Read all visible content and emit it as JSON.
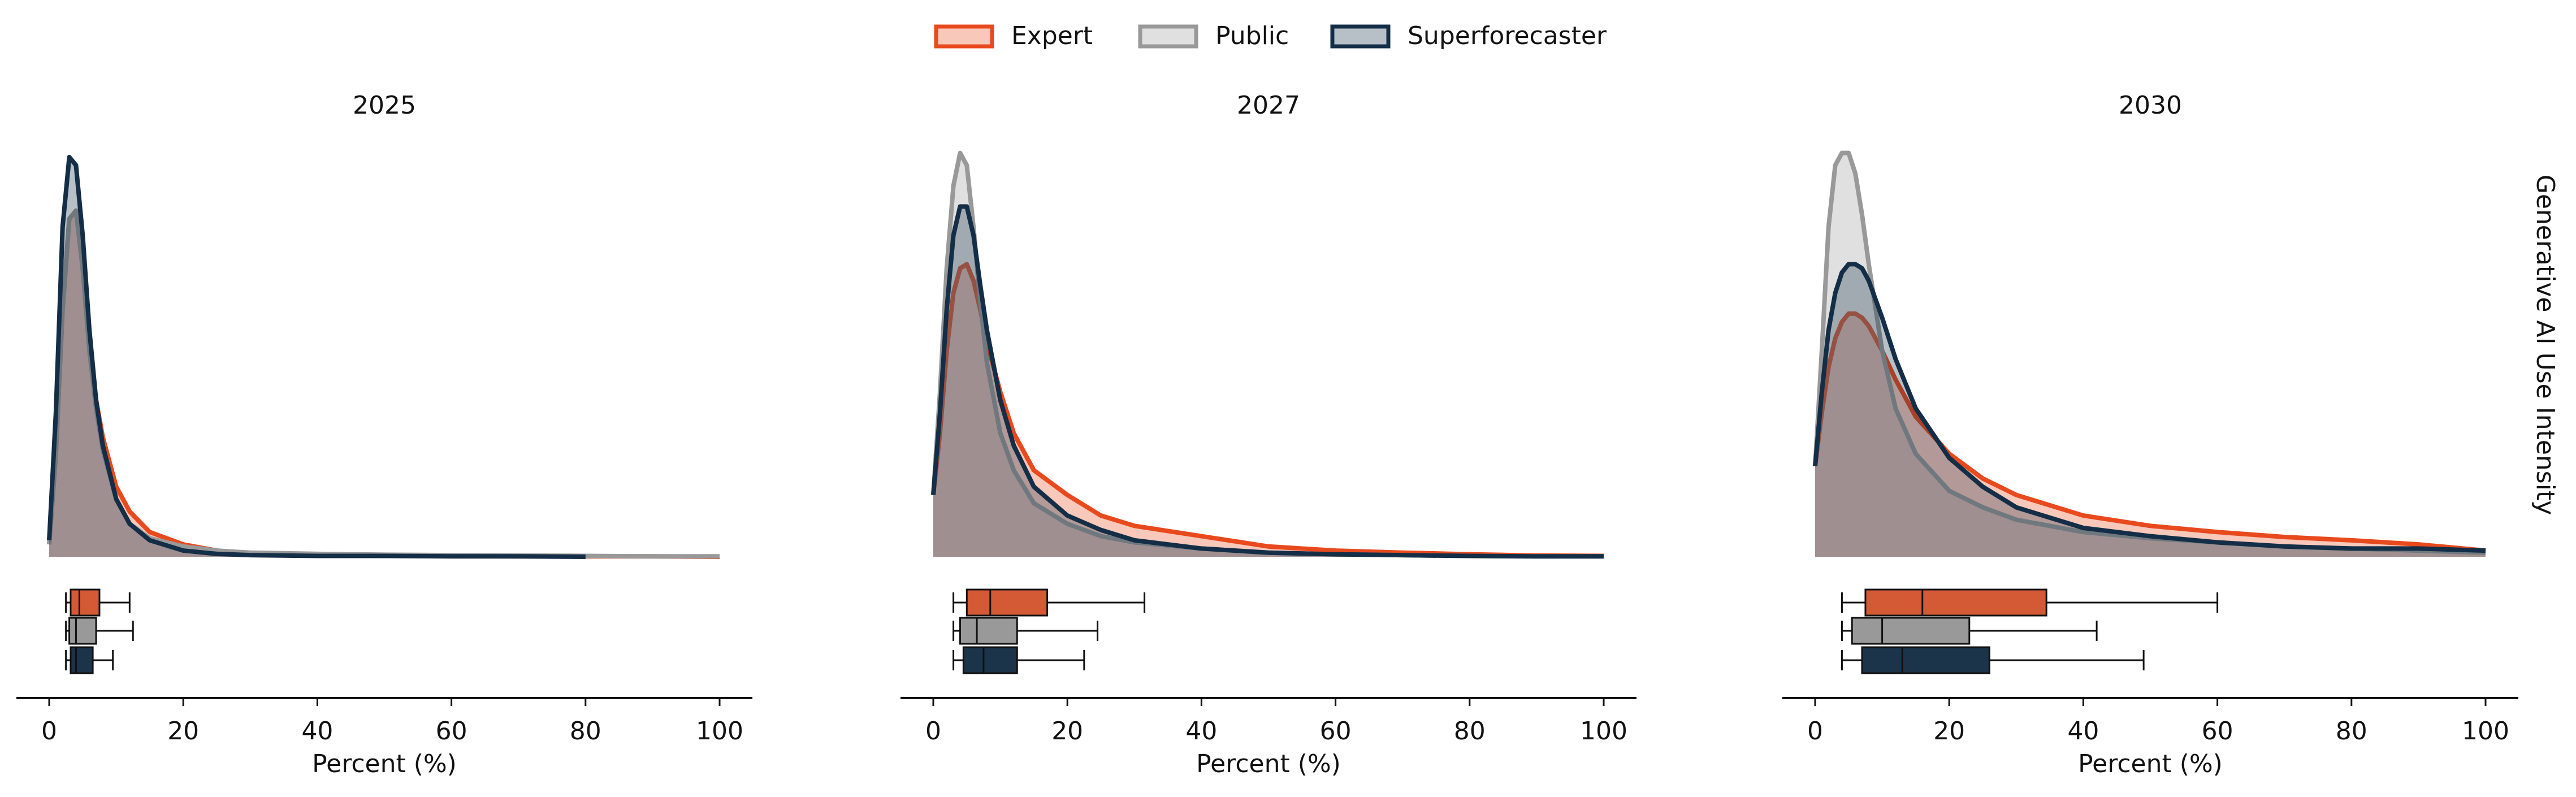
{
  "row_label": "Generative AI Use Intensity",
  "chart_data": [
    {
      "type": "density",
      "title": "2025",
      "xlabel": "Percent (%)",
      "x": [
        0,
        1,
        2,
        3,
        4,
        5,
        6,
        7,
        8,
        10,
        12,
        15,
        20,
        25,
        30,
        40,
        50,
        60,
        70,
        80,
        90,
        100
      ],
      "xlim": [
        0,
        100
      ],
      "xticks": [
        0,
        20,
        40,
        60,
        80,
        100
      ],
      "ylim": [
        0,
        1
      ],
      "series": [
        {
          "name": "Expert",
          "color": "#e8491d",
          "box_color": "#d45a35",
          "values": [
            0.03,
            0.25,
            0.6,
            0.82,
            0.84,
            0.7,
            0.52,
            0.38,
            0.29,
            0.17,
            0.11,
            0.06,
            0.03,
            0.015,
            0.008,
            0.004,
            0.003,
            0.002,
            0.001,
            0.001,
            0.001,
            0
          ],
          "box": {
            "whislo": 2.5,
            "q1": 3.2,
            "med": 4.5,
            "q3": 7.5,
            "whishi": 12
          }
        },
        {
          "name": "Public",
          "color": "#999999",
          "box_color": "#999999",
          "values": [
            0.03,
            0.25,
            0.6,
            0.82,
            0.84,
            0.7,
            0.5,
            0.36,
            0.26,
            0.14,
            0.08,
            0.045,
            0.025,
            0.015,
            0.01,
            0.007,
            0.005,
            0.004,
            0.003,
            0.002,
            0.001,
            0.001
          ],
          "box": {
            "whislo": 2.5,
            "q1": 3,
            "med": 4,
            "q3": 7,
            "whishi": 12.5
          }
        },
        {
          "name": "Superforecaster",
          "color": "#132e46",
          "box_color": "#1b3449",
          "values": [
            0.04,
            0.35,
            0.8,
            0.97,
            0.95,
            0.78,
            0.55,
            0.38,
            0.27,
            0.14,
            0.08,
            0.04,
            0.015,
            0.007,
            0.004,
            0.002,
            0.002,
            0.001,
            0.001,
            0,
            null,
            null
          ],
          "box": {
            "whislo": 2.5,
            "q1": 3.2,
            "med": 4,
            "q3": 6.5,
            "whishi": 9.5
          }
        }
      ]
    },
    {
      "type": "density",
      "title": "2027",
      "xlabel": "Percent (%)",
      "x": [
        0,
        1,
        2,
        3,
        4,
        5,
        6,
        7,
        8,
        10,
        12,
        15,
        20,
        25,
        30,
        40,
        50,
        60,
        70,
        80,
        90,
        100
      ],
      "xlim": [
        0,
        100
      ],
      "xticks": [
        0,
        20,
        40,
        60,
        80,
        100
      ],
      "ylim": [
        0,
        1
      ],
      "series": [
        {
          "name": "Expert",
          "color": "#e8491d",
          "box_color": "#d45a35",
          "values": [
            0.15,
            0.3,
            0.5,
            0.64,
            0.7,
            0.71,
            0.67,
            0.6,
            0.52,
            0.4,
            0.3,
            0.21,
            0.15,
            0.1,
            0.075,
            0.05,
            0.025,
            0.015,
            0.01,
            0.006,
            0.003,
            0.002
          ],
          "box": {
            "whislo": 3,
            "q1": 5,
            "med": 8.5,
            "q3": 17,
            "whishi": 31.5
          }
        },
        {
          "name": "Public",
          "color": "#999999",
          "box_color": "#999999",
          "values": [
            0.15,
            0.4,
            0.7,
            0.9,
            0.98,
            0.95,
            0.8,
            0.62,
            0.47,
            0.3,
            0.21,
            0.13,
            0.08,
            0.05,
            0.035,
            0.02,
            0.01,
            0.006,
            0.004,
            0.002,
            0.001,
            0.001
          ],
          "box": {
            "whislo": 3,
            "q1": 4,
            "med": 6.5,
            "q3": 12.5,
            "whishi": 24.5
          }
        },
        {
          "name": "Superforecaster",
          "color": "#132e46",
          "box_color": "#1b3449",
          "values": [
            0.15,
            0.35,
            0.6,
            0.78,
            0.85,
            0.85,
            0.78,
            0.66,
            0.55,
            0.38,
            0.27,
            0.17,
            0.1,
            0.065,
            0.04,
            0.02,
            0.01,
            0.006,
            0.004,
            0.002,
            0.001,
            0.001
          ],
          "box": {
            "whislo": 3,
            "q1": 4.5,
            "med": 7.5,
            "q3": 12.5,
            "whishi": 22.5
          }
        }
      ]
    },
    {
      "type": "density",
      "title": "2030",
      "xlabel": "Percent (%)",
      "x": [
        0,
        1,
        2,
        3,
        4,
        5,
        6,
        7,
        8,
        10,
        12,
        15,
        20,
        25,
        30,
        40,
        50,
        60,
        70,
        80,
        90,
        100
      ],
      "xlim": [
        0,
        100
      ],
      "xticks": [
        0,
        20,
        40,
        60,
        80,
        100
      ],
      "ylim": [
        0,
        1
      ],
      "series": [
        {
          "name": "Expert",
          "color": "#e8491d",
          "box_color": "#d45a35",
          "values": [
            0.22,
            0.35,
            0.46,
            0.53,
            0.57,
            0.59,
            0.59,
            0.58,
            0.56,
            0.5,
            0.43,
            0.34,
            0.25,
            0.19,
            0.15,
            0.1,
            0.075,
            0.06,
            0.048,
            0.04,
            0.03,
            0.015
          ],
          "box": {
            "whislo": 4,
            "q1": 7.5,
            "med": 16,
            "q3": 34.5,
            "whishi": 60
          }
        },
        {
          "name": "Public",
          "color": "#999999",
          "box_color": "#999999",
          "values": [
            0.22,
            0.5,
            0.8,
            0.95,
            0.98,
            0.98,
            0.93,
            0.83,
            0.71,
            0.5,
            0.36,
            0.25,
            0.16,
            0.12,
            0.09,
            0.06,
            0.045,
            0.035,
            0.025,
            0.02,
            0.015,
            0.01
          ],
          "box": {
            "whislo": 4,
            "q1": 5.5,
            "med": 10,
            "q3": 23,
            "whishi": 42
          }
        },
        {
          "name": "Superforecaster",
          "color": "#132e46",
          "box_color": "#1b3449",
          "values": [
            0.22,
            0.4,
            0.55,
            0.64,
            0.69,
            0.71,
            0.71,
            0.7,
            0.67,
            0.58,
            0.48,
            0.36,
            0.24,
            0.17,
            0.12,
            0.07,
            0.05,
            0.035,
            0.025,
            0.02,
            0.02,
            0.015
          ],
          "box": {
            "whislo": 4,
            "q1": 7,
            "med": 13,
            "q3": 26,
            "whishi": 49
          }
        }
      ]
    }
  ]
}
